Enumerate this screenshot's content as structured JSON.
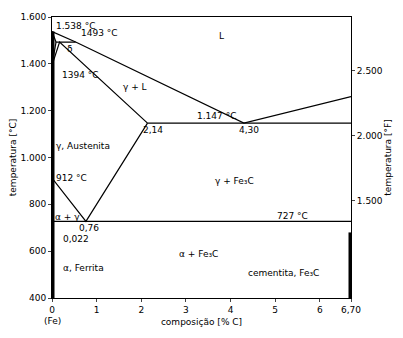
{
  "chart_data": {
    "type": "line",
    "x_label": "composição [% C]",
    "y_label": "temperatura [°C]",
    "y2_label": "temperatura [°F]",
    "xlim": [
      0,
      6.7
    ],
    "xticks": [
      0,
      1,
      2,
      3,
      4,
      5,
      6,
      {
        "value": 6.7,
        "label": "6,70"
      }
    ],
    "ylim": [
      400,
      1600
    ],
    "yticks": [
      400,
      600,
      800,
      {
        "value": 1000,
        "label": "1.000"
      },
      {
        "value": 1200,
        "label": "1.200"
      },
      {
        "value": 1400,
        "label": "1.400"
      },
      {
        "value": 1600,
        "label": "1.600"
      }
    ],
    "y2lim": [
      752,
      2912
    ],
    "y2ticks": [
      {
        "value": 1500,
        "label": "1.500"
      },
      {
        "value": 2000,
        "label": "2.000"
      },
      {
        "value": 2500,
        "label": "2.500"
      }
    ],
    "grid": false,
    "color": "#000000",
    "series": [
      {
        "x": [
          0,
          0.53,
          4.3,
          6.7
        ],
        "values": [
          1538,
          1493,
          1147,
          1260
        ],
        "line_style": "solid"
      },
      {
        "x": [
          0,
          0.09,
          0.53
        ],
        "values": [
          1538,
          1493,
          1493
        ],
        "line_style": "solid"
      },
      {
        "x": [
          0,
          0.09
        ],
        "values": [
          1394,
          1493
        ],
        "line_style": "solid"
      },
      {
        "x": [
          0,
          0.17,
          2.14
        ],
        "values": [
          1394,
          1493,
          1147
        ],
        "line_style": "solid"
      },
      {
        "x": [
          2.14,
          6.7
        ],
        "values": [
          1147,
          1147
        ],
        "line_style": "solid"
      },
      {
        "x": [
          0,
          0.76,
          2.14
        ],
        "values": [
          912,
          727,
          1147
        ],
        "line_style": "solid"
      },
      {
        "x": [
          0,
          0.022,
          0.008
        ],
        "values": [
          912,
          727,
          400
        ],
        "line_style": "solid"
      },
      {
        "x": [
          0.022,
          6.7
        ],
        "values": [
          727,
          727
        ],
        "line_style": "solid"
      },
      {
        "x": [
          0,
          0
        ],
        "values": [
          400,
          1538
        ],
        "line_style": "thick"
      },
      {
        "x": [
          6.7,
          6.7
        ],
        "values": [
          400,
          680
        ],
        "line_style": "thick"
      }
    ],
    "annotations": [
      {
        "text": "1.538 °C",
        "x": 0.05,
        "y": 1562
      },
      {
        "text": "1493 °C",
        "x": 0.6,
        "y": 1530
      },
      {
        "text": "δ",
        "x": 0.28,
        "y": 1462
      },
      {
        "text": "1394 °C",
        "x": 0.18,
        "y": 1352
      },
      {
        "text": "L",
        "x": 3.7,
        "y": 1520
      },
      {
        "text": "γ + L",
        "x": 1.55,
        "y": 1300
      },
      {
        "text": "1.147 °C",
        "x": 3.2,
        "y": 1178
      },
      {
        "text": "2,14",
        "x": 2.0,
        "y": 1118
      },
      {
        "text": "4,30",
        "x": 4.15,
        "y": 1118
      },
      {
        "text": "γ, Austenita",
        "x": 0.05,
        "y": 1050
      },
      {
        "text": "912 °C",
        "x": 0.05,
        "y": 912
      },
      {
        "text": "γ + Fe₃C",
        "x": 3.6,
        "y": 900
      },
      {
        "text": "727 °C",
        "x": 5.0,
        "y": 752
      },
      {
        "text": "α + γ",
        "x": 0.03,
        "y": 748
      },
      {
        "text": "0,76",
        "x": 0.55,
        "y": 700
      },
      {
        "text": "0,022",
        "x": 0.2,
        "y": 652
      },
      {
        "text": "α, Ferrita",
        "x": 0.2,
        "y": 530
      },
      {
        "text": "α + Fe₃C",
        "x": 2.8,
        "y": 590
      },
      {
        "text": "cementita, Fe₃C",
        "x": 4.35,
        "y": 505
      },
      {
        "text": "(Fe)",
        "x": 0,
        "y": 400,
        "position": "below"
      }
    ]
  }
}
